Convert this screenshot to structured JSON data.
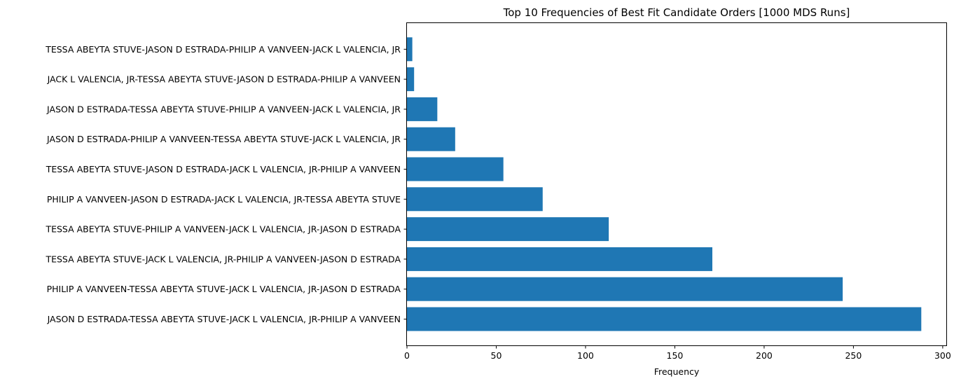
{
  "chart_data": {
    "type": "bar",
    "orientation": "horizontal",
    "title": "Top 10 Frequencies of Best Fit Candidate Orders [1000 MDS Runs]",
    "xlabel": "Frequency",
    "ylabel": "",
    "xlim": [
      0,
      302
    ],
    "xticks": [
      0,
      50,
      100,
      150,
      200,
      250,
      300
    ],
    "grid": false,
    "bar_color": "#1f77b4",
    "categories": [
      "JASON D ESTRADA-TESSA ABEYTA STUVE-JACK L VALENCIA, JR-PHILIP A VANVEEN",
      "PHILIP A VANVEEN-TESSA ABEYTA STUVE-JACK L VALENCIA, JR-JASON D ESTRADA",
      "TESSA ABEYTA STUVE-JACK L VALENCIA, JR-PHILIP A VANVEEN-JASON D ESTRADA",
      "TESSA ABEYTA STUVE-PHILIP A VANVEEN-JACK L VALENCIA, JR-JASON D ESTRADA",
      "PHILIP A VANVEEN-JASON D ESTRADA-JACK L VALENCIA, JR-TESSA ABEYTA STUVE",
      "TESSA ABEYTA STUVE-JASON D ESTRADA-JACK L VALENCIA, JR-PHILIP A VANVEEN",
      "JASON D ESTRADA-PHILIP A VANVEEN-TESSA ABEYTA STUVE-JACK L VALENCIA, JR",
      "JASON D ESTRADA-TESSA ABEYTA STUVE-PHILIP A VANVEEN-JACK L VALENCIA, JR",
      "JACK L VALENCIA, JR-TESSA ABEYTA STUVE-JASON D ESTRADA-PHILIP A VANVEEN",
      "TESSA ABEYTA STUVE-JASON D ESTRADA-PHILIP A VANVEEN-JACK L VALENCIA, JR"
    ],
    "values": [
      288,
      244,
      171,
      113,
      76,
      54,
      27,
      17,
      4,
      3
    ]
  }
}
